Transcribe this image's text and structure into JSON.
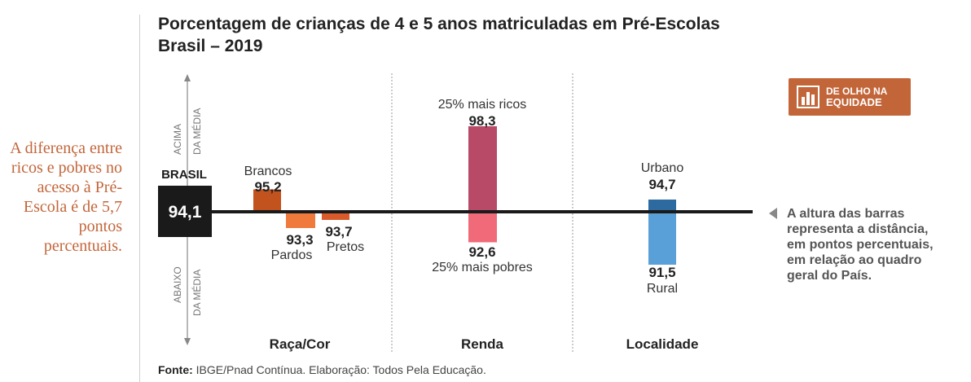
{
  "title": {
    "line1": "Porcentagem de crianças de 4 e 5 anos matriculadas em Pré-Escolas",
    "line2": "Brasil – 2019"
  },
  "side_note": "A diferença entre ricos e pobres no acesso à Pré-Escola é de 5,7 pontos percentuais.",
  "badge": {
    "icon": "bar-chart-icon",
    "line1": "DE OLHO NA",
    "line2": "EQUIDADE"
  },
  "axis_labels": {
    "above": [
      "ACIMA",
      "DA MÉDIA"
    ],
    "below": [
      "ABAIXO",
      "DA MÉDIA"
    ]
  },
  "note": "A altura das barras representa a distância, em pontos percentuais, em relação ao quadro geral do País.",
  "footer": {
    "label": "Fonte:",
    "text": "IBGE/Pnad Contínua. Elaboração: Todos Pela Educação."
  },
  "colors": {
    "baseline": "#1a1a1a",
    "brancos": "#c2521e",
    "pardos": "#f07a3c",
    "pretos": "#d95a2a",
    "ricos": "#b84a68",
    "pobres": "#f06a7a",
    "urbano": "#2d6aa0",
    "rural": "#5aa0d8",
    "accent": "#c2663a"
  },
  "chart_data": {
    "type": "bar",
    "title": "Porcentagem de crianças de 4 e 5 anos matriculadas em Pré-Escolas Brasil – 2019",
    "baseline": {
      "label": "BRASIL",
      "value": 94.1,
      "display": "94,1"
    },
    "groups": [
      {
        "name": "Raça/Cor",
        "bars": [
          {
            "label": "Brancos",
            "value": 95.2,
            "display": "95,2"
          },
          {
            "label": "Pardos",
            "value": 93.3,
            "display": "93,3"
          },
          {
            "label": "Pretos",
            "value": 93.7,
            "display": "93,7"
          }
        ]
      },
      {
        "name": "Renda",
        "bars": [
          {
            "label": "25% mais ricos",
            "value": 98.3,
            "display": "98,3"
          },
          {
            "label": "25% mais pobres",
            "value": 92.6,
            "display": "92,6"
          }
        ]
      },
      {
        "name": "Localidade",
        "bars": [
          {
            "label": "Urbano",
            "value": 94.7,
            "display": "94,7"
          },
          {
            "label": "Rural",
            "value": 91.5,
            "display": "91,5"
          }
        ]
      }
    ]
  }
}
